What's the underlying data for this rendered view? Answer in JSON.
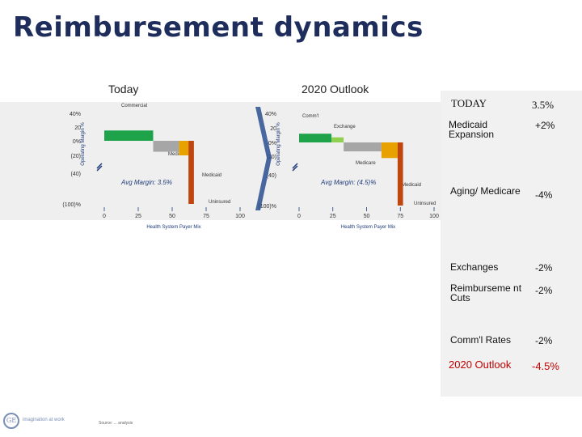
{
  "title": "Reimbursement dynamics",
  "panels": {
    "today_label": "Today",
    "outlook_label": "2020 Outlook"
  },
  "chart_data": [
    {
      "type": "bar",
      "variant": "variable-width (marimekko) bar",
      "ylabel": "Operating Margin %",
      "xlabel": "Health System Payer Mix",
      "ylim": [
        -100,
        40
      ],
      "xlim": [
        0,
        100
      ],
      "y_ticks": [
        "40%",
        "20",
        "0%",
        "(20)",
        "(40)",
        "(100)%"
      ],
      "x_ticks": [
        "0",
        "25",
        "50",
        "75",
        "100"
      ],
      "annotation": "Avg Margin: 3.5%",
      "segments": [
        {
          "name": "Commercial",
          "x_start": 0,
          "x_end": 36,
          "value": 15,
          "color": "#1ea34a"
        },
        {
          "name": "Medicare",
          "x_start": 36,
          "x_end": 55,
          "value": -15,
          "color": "#a6a6a6"
        },
        {
          "name": "Medicaid",
          "x_start": 55,
          "x_end": 62,
          "value": -20,
          "color": "#e8a200"
        },
        {
          "name": "Uninsured",
          "x_start": 62,
          "x_end": 66,
          "value": -100,
          "color": "#c0460f"
        }
      ]
    },
    {
      "type": "bar",
      "variant": "variable-width (marimekko) bar",
      "ylabel": "Operating Margin %",
      "xlabel": "Health System Payer Mix",
      "ylim": [
        -100,
        40
      ],
      "xlim": [
        0,
        100
      ],
      "y_ticks": [
        "40%",
        "20",
        "0%",
        "(20)",
        "(40)",
        "(100)%"
      ],
      "x_ticks": [
        "0",
        "25",
        "50",
        "75",
        "100"
      ],
      "annotation": "Avg Margin: (4.5)%",
      "segments": [
        {
          "name": "Comm'l",
          "x_start": 0,
          "x_end": 24,
          "value": 12,
          "color": "#1ea34a"
        },
        {
          "name": "Exchange",
          "x_start": 24,
          "x_end": 33,
          "value": 7,
          "color": "#8fd14f"
        },
        {
          "name": "Medicare",
          "x_start": 33,
          "x_end": 61,
          "value": -13,
          "color": "#a6a6a6"
        },
        {
          "name": "Medicaid",
          "x_start": 61,
          "x_end": 73,
          "value": -22,
          "color": "#e8a200"
        },
        {
          "name": "Uninsured",
          "x_start": 73,
          "x_end": 77,
          "value": -100,
          "color": "#c0460f"
        }
      ]
    }
  ],
  "table": {
    "rows": [
      {
        "label": "TODAY",
        "value": "3.5%",
        "style": "today"
      },
      {
        "label": "Medicaid Expansion",
        "value": "+2%",
        "style": "normal"
      },
      {
        "label": "Aging/ Medicare",
        "value": "-4%",
        "style": "normal"
      },
      {
        "label": "Exchanges",
        "value": "-2%",
        "style": "normal"
      },
      {
        "label": "Reimburseme nt Cuts",
        "value": "-2%",
        "style": "normal"
      },
      {
        "label": "Comm'l Rates",
        "value": "-2%",
        "style": "normal"
      },
      {
        "label": "2020 Outlook",
        "value": "-4.5%",
        "style": "outlook"
      }
    ]
  },
  "colors": {
    "title": "#1f2d5c",
    "outlook_text": "#c00000",
    "arrow": "#2a4f8f"
  },
  "footer": {
    "logo_mark": "GE",
    "logo_text": "imagination at work",
    "note": "Source: ... analysis"
  },
  "icons": [
    "ge-logo-icon",
    "chevron-right-icon",
    "axis-break-icon"
  ]
}
